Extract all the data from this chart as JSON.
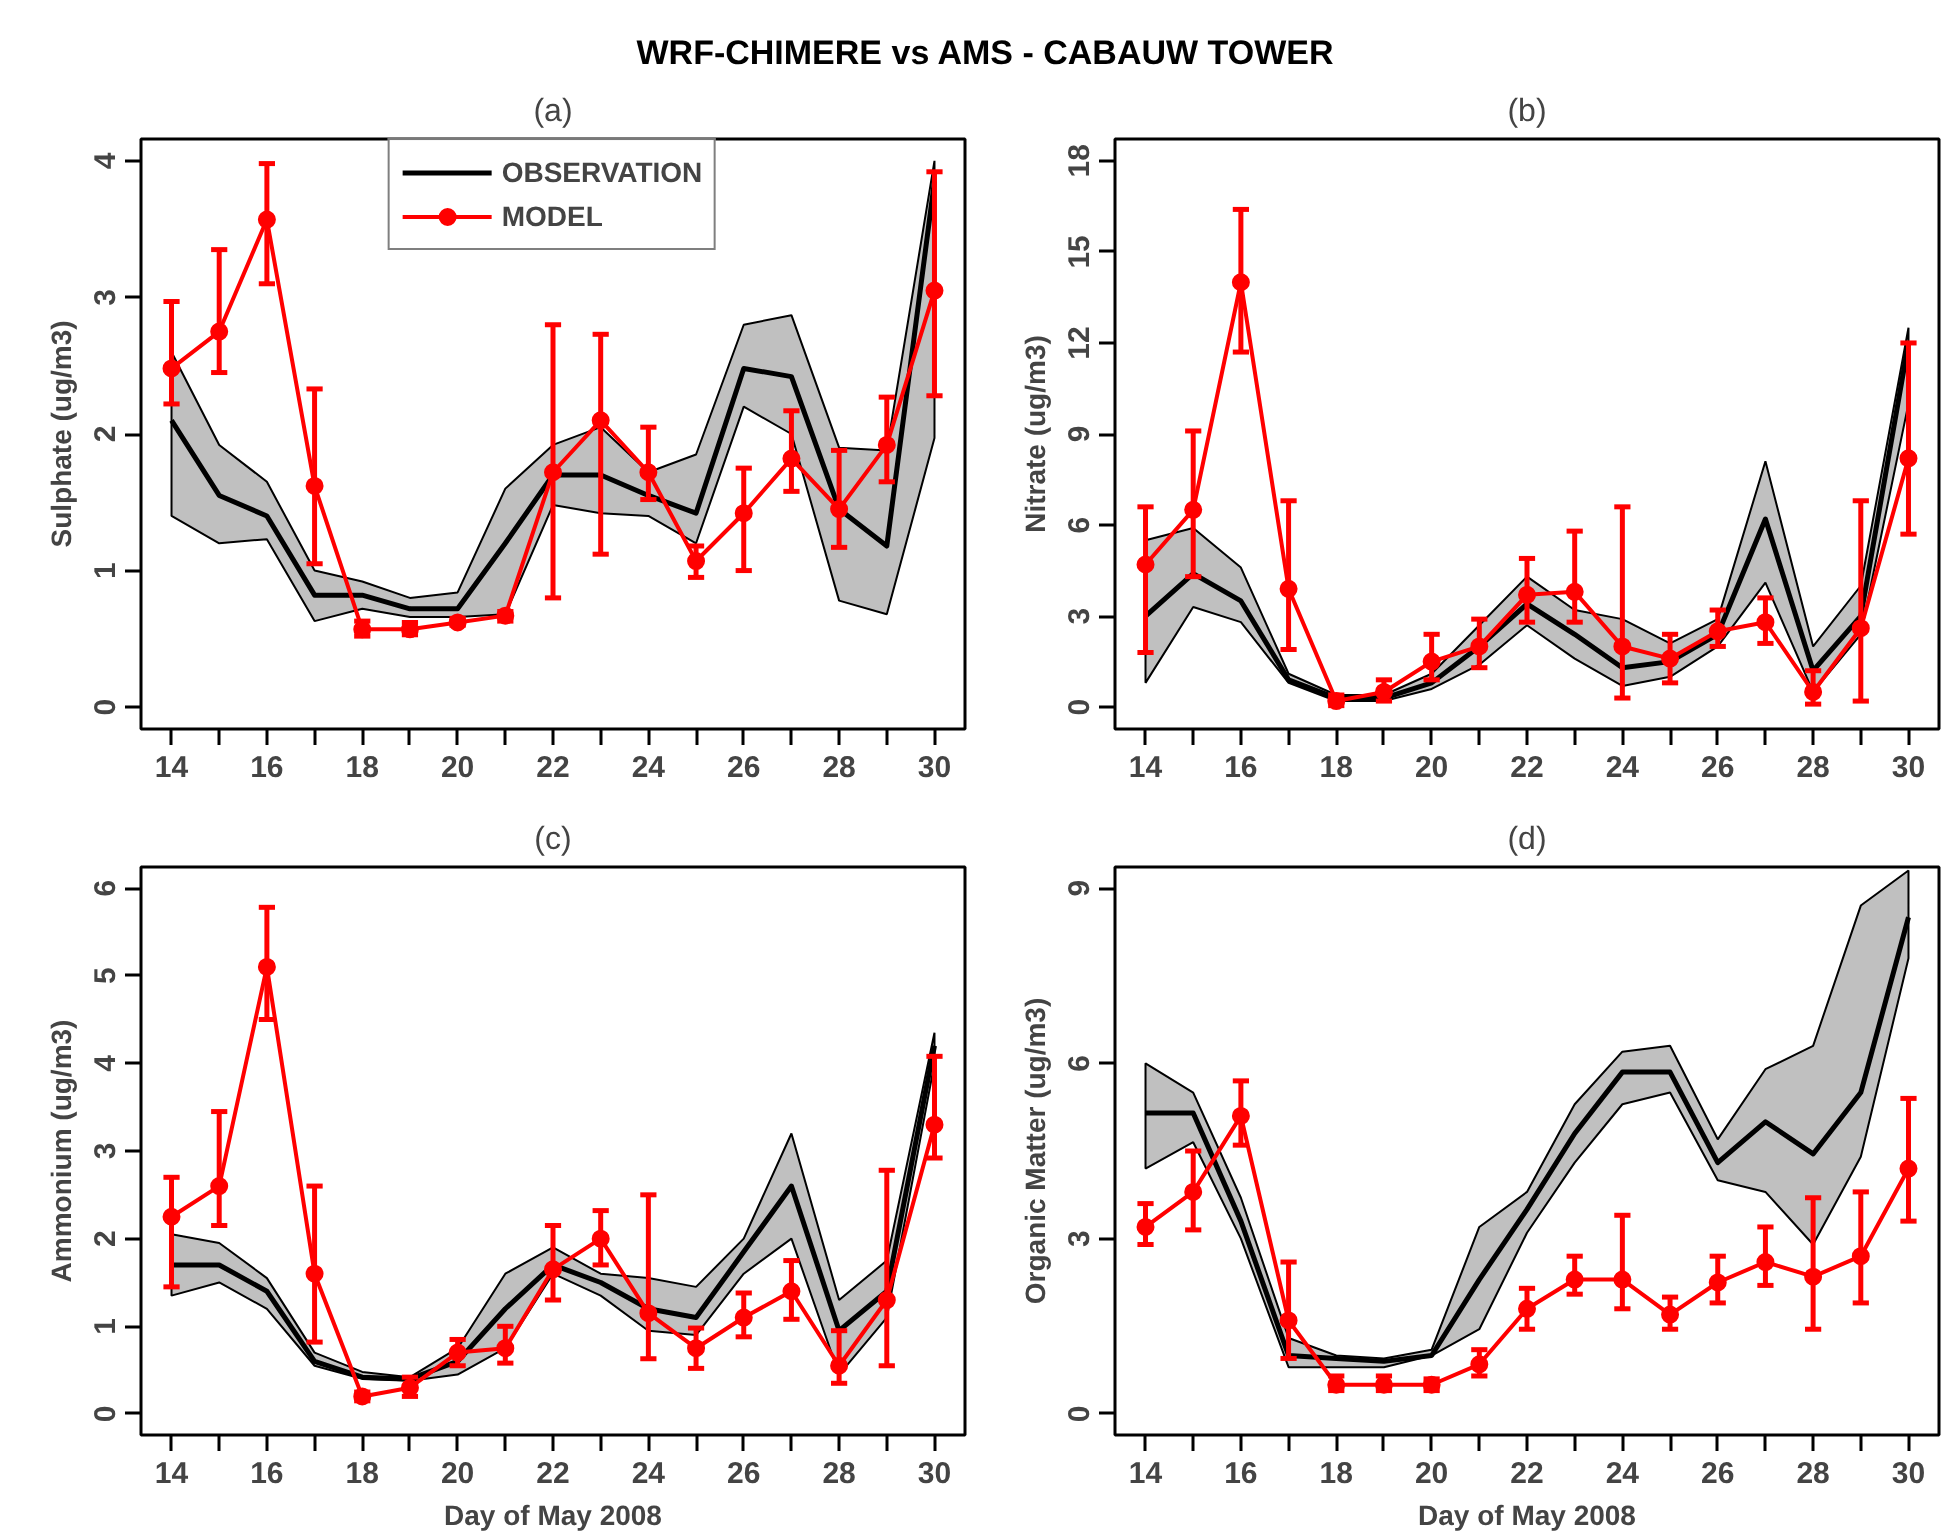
{
  "chart_data": [
    {
      "type": "line",
      "title": "(a)",
      "ylabel": "Sulphate (ug/m3)",
      "annotations": [
        "WRF-CHIMERE vs AMS - CABAUW TOWER"
      ],
      "legend": "top",
      "marker": "circle",
      "x": [
        14,
        15,
        16,
        17,
        18,
        19,
        20,
        21,
        22,
        23,
        24,
        25,
        26,
        27,
        28,
        29,
        30
      ],
      "xlim": [
        13.36,
        30.64
      ],
      "xticks": [
        14,
        {
          "value": 15,
          "label": null
        },
        16,
        {
          "value": 17,
          "label": null
        },
        18,
        {
          "value": 19,
          "label": null
        },
        20,
        {
          "value": 21,
          "label": null
        },
        22,
        {
          "value": 23,
          "label": null
        },
        24,
        {
          "value": 25,
          "label": null
        },
        26,
        {
          "value": 27,
          "label": null
        },
        28,
        {
          "value": 29,
          "label": null
        },
        30
      ],
      "ylim": [
        -0.16,
        4.16
      ],
      "yticks": [
        0,
        1,
        2,
        3,
        4
      ],
      "series": [
        {
          "name": "OBSERVATION",
          "color": "#000000",
          "marker": "none",
          "values": [
            2.1,
            1.55,
            1.4,
            0.82,
            0.82,
            0.72,
            0.72,
            1.2,
            1.7,
            1.7,
            1.55,
            1.42,
            2.48,
            2.42,
            1.45,
            1.18,
            3.85
          ],
          "lower": [
            1.4,
            1.2,
            1.23,
            0.63,
            0.72,
            0.66,
            0.66,
            0.68,
            1.48,
            1.42,
            1.4,
            1.2,
            2.2,
            2.0,
            0.78,
            0.68,
            1.97
          ],
          "upper": [
            2.6,
            1.92,
            1.65,
            1.0,
            0.92,
            0.8,
            0.84,
            1.6,
            1.92,
            2.05,
            1.72,
            1.85,
            2.8,
            2.87,
            1.9,
            1.88,
            4.0
          ]
        },
        {
          "name": "MODEL",
          "color": "#ff0000",
          "values": [
            2.48,
            2.75,
            3.57,
            1.62,
            0.57,
            0.57,
            0.62,
            0.67,
            1.72,
            2.1,
            1.72,
            1.07,
            1.42,
            1.82,
            1.45,
            1.92,
            3.05
          ],
          "errors": [
            [
              2.22,
              2.97
            ],
            [
              2.45,
              3.35
            ],
            [
              3.1,
              3.98
            ],
            [
              1.05,
              2.33
            ],
            [
              0.52,
              0.63
            ],
            [
              0.53,
              0.62
            ],
            [
              0.6,
              0.65
            ],
            [
              0.63,
              0.7
            ],
            [
              0.8,
              2.8
            ],
            [
              1.12,
              2.73
            ],
            [
              1.52,
              2.05
            ],
            [
              0.95,
              1.18
            ],
            [
              1.0,
              1.75
            ],
            [
              1.58,
              2.17
            ],
            [
              1.17,
              1.88
            ],
            [
              1.65,
              2.27
            ],
            [
              2.28,
              3.92
            ]
          ]
        }
      ]
    },
    {
      "type": "line",
      "title": "(b)",
      "ylabel": "Nitrate (ug/m3)",
      "marker": "circle",
      "x": [
        14,
        15,
        16,
        17,
        18,
        19,
        20,
        21,
        22,
        23,
        24,
        25,
        26,
        27,
        28,
        29,
        30
      ],
      "xlim": [
        13.36,
        30.64
      ],
      "xticks": [
        14,
        {
          "value": 15,
          "label": null
        },
        16,
        {
          "value": 17,
          "label": null
        },
        18,
        {
          "value": 19,
          "label": null
        },
        20,
        {
          "value": 21,
          "label": null
        },
        22,
        {
          "value": 23,
          "label": null
        },
        24,
        {
          "value": 25,
          "label": null
        },
        26,
        {
          "value": 27,
          "label": null
        },
        28,
        {
          "value": 29,
          "label": null
        },
        30
      ],
      "ylim": [
        -0.72,
        18.72
      ],
      "yticks": [
        0,
        3,
        6,
        9,
        12,
        15,
        18
      ],
      "series": [
        {
          "color": "#000000",
          "marker": "none",
          "values": [
            3.0,
            4.4,
            3.5,
            0.9,
            0.3,
            0.3,
            0.8,
            2.0,
            3.4,
            2.4,
            1.3,
            1.5,
            2.4,
            6.2,
            1.2,
            3.0,
            12.0
          ],
          "lower": [
            0.8,
            3.3,
            2.8,
            0.8,
            0.2,
            0.2,
            0.6,
            1.4,
            2.7,
            1.6,
            0.7,
            1.0,
            2.0,
            4.1,
            0.5,
            2.4,
            10.0
          ],
          "upper": [
            5.5,
            5.9,
            4.6,
            1.1,
            0.4,
            0.4,
            1.1,
            2.7,
            4.3,
            3.2,
            2.9,
            2.1,
            2.9,
            8.1,
            2.0,
            4.0,
            12.5
          ]
        },
        {
          "color": "#ff0000",
          "values": [
            4.7,
            6.5,
            14.0,
            3.9,
            0.2,
            0.5,
            1.5,
            2.0,
            3.7,
            3.8,
            2.0,
            1.6,
            2.5,
            2.8,
            0.5,
            2.6,
            8.2
          ],
          "errors": [
            [
              1.8,
              6.6
            ],
            [
              4.3,
              9.1
            ],
            [
              11.7,
              16.4
            ],
            [
              1.9,
              6.8
            ],
            [
              0.05,
              0.4
            ],
            [
              0.2,
              0.9
            ],
            [
              0.9,
              2.4
            ],
            [
              1.3,
              2.9
            ],
            [
              2.8,
              4.9
            ],
            [
              2.8,
              5.8
            ],
            [
              0.3,
              6.6
            ],
            [
              0.8,
              2.4
            ],
            [
              2.0,
              3.2
            ],
            [
              2.1,
              3.6
            ],
            [
              0.1,
              1.2
            ],
            [
              0.2,
              6.8
            ],
            [
              5.7,
              12.0
            ]
          ]
        }
      ]
    },
    {
      "type": "line",
      "title": "(c)",
      "xlabel": "Day of May 2008",
      "ylabel": "Ammonium (ug/m3)",
      "marker": "circle",
      "x": [
        14,
        15,
        16,
        17,
        18,
        19,
        20,
        21,
        22,
        23,
        24,
        25,
        26,
        27,
        28,
        29,
        30
      ],
      "xlim": [
        13.36,
        30.64
      ],
      "xticks": [
        14,
        {
          "value": 15,
          "label": null
        },
        16,
        {
          "value": 17,
          "label": null
        },
        18,
        {
          "value": 19,
          "label": null
        },
        20,
        {
          "value": 21,
          "label": null
        },
        22,
        {
          "value": 23,
          "label": null
        },
        24,
        {
          "value": 25,
          "label": null
        },
        26,
        {
          "value": 27,
          "label": null
        },
        28,
        {
          "value": 29,
          "label": null
        },
        30
      ],
      "ylim": [
        -0.24,
        6.24
      ],
      "yticks": [
        0,
        1,
        2,
        3,
        4,
        5,
        6
      ],
      "series": [
        {
          "color": "#000000",
          "marker": "none",
          "values": [
            1.7,
            1.7,
            1.4,
            0.6,
            0.42,
            0.4,
            0.6,
            1.2,
            1.7,
            1.5,
            1.2,
            1.1,
            1.85,
            2.6,
            0.95,
            1.4,
            4.2
          ],
          "lower": [
            1.35,
            1.5,
            1.2,
            0.55,
            0.4,
            0.38,
            0.45,
            0.75,
            1.6,
            1.35,
            0.95,
            0.9,
            1.6,
            2.0,
            0.45,
            1.1,
            4.0
          ],
          "upper": [
            2.05,
            1.95,
            1.55,
            0.7,
            0.48,
            0.42,
            0.75,
            1.6,
            1.9,
            1.6,
            1.55,
            1.45,
            2.0,
            3.2,
            1.3,
            1.75,
            4.35
          ]
        },
        {
          "color": "#ff0000",
          "values": [
            2.25,
            2.6,
            5.1,
            1.6,
            0.2,
            0.3,
            0.7,
            0.75,
            1.65,
            2.0,
            1.15,
            0.75,
            1.1,
            1.4,
            0.55,
            1.3,
            3.3
          ],
          "errors": [
            [
              1.45,
              2.7
            ],
            [
              2.15,
              3.45
            ],
            [
              4.5,
              5.78
            ],
            [
              0.82,
              2.6
            ],
            [
              0.15,
              0.25
            ],
            [
              0.2,
              0.42
            ],
            [
              0.55,
              0.85
            ],
            [
              0.58,
              1.0
            ],
            [
              1.3,
              2.15
            ],
            [
              1.7,
              2.32
            ],
            [
              0.63,
              2.5
            ],
            [
              0.52,
              0.98
            ],
            [
              0.88,
              1.38
            ],
            [
              1.08,
              1.75
            ],
            [
              0.35,
              0.95
            ],
            [
              0.55,
              2.78
            ],
            [
              2.92,
              4.08
            ]
          ]
        }
      ]
    },
    {
      "type": "line",
      "title": "(d)",
      "xlabel": "Day of May 2008",
      "ylabel": "Organic Matter (ug/m3)",
      "marker": "circle",
      "x": [
        14,
        15,
        16,
        17,
        18,
        19,
        20,
        21,
        22,
        23,
        24,
        25,
        26,
        27,
        28,
        29,
        30
      ],
      "xlim": [
        13.36,
        30.64
      ],
      "xticks": [
        14,
        {
          "value": 15,
          "label": null
        },
        16,
        {
          "value": 17,
          "label": null
        },
        18,
        {
          "value": 19,
          "label": null
        },
        20,
        {
          "value": 21,
          "label": null
        },
        22,
        {
          "value": 23,
          "label": null
        },
        24,
        {
          "value": 25,
          "label": null
        },
        26,
        {
          "value": 27,
          "label": null
        },
        28,
        {
          "value": 29,
          "label": null
        },
        30
      ],
      "ylim": [
        -0.36,
        9.36
      ],
      "yticks": [
        0,
        3,
        6,
        9
      ],
      "series": [
        {
          "color": "#000000",
          "marker": "none",
          "values": [
            5.15,
            5.15,
            3.3,
            1.0,
            0.95,
            0.9,
            1.0,
            2.3,
            3.5,
            4.8,
            5.85,
            5.85,
            4.3,
            5.0,
            4.45,
            5.5,
            8.5
          ],
          "lower": [
            4.2,
            4.65,
            3.0,
            0.8,
            0.8,
            0.8,
            1.0,
            1.45,
            3.1,
            4.3,
            5.3,
            5.5,
            4.0,
            3.8,
            2.9,
            4.4,
            7.8
          ],
          "upper": [
            6.0,
            5.5,
            3.7,
            1.3,
            1.0,
            0.95,
            1.1,
            3.2,
            3.8,
            5.3,
            6.2,
            6.3,
            4.7,
            5.9,
            6.3,
            8.7,
            9.3
          ]
        },
        {
          "color": "#ff0000",
          "values": [
            3.2,
            3.8,
            5.1,
            1.6,
            0.5,
            0.5,
            0.5,
            0.85,
            1.8,
            2.3,
            2.3,
            1.7,
            2.25,
            2.6,
            2.35,
            2.7,
            4.2
          ],
          "errors": [
            [
              2.9,
              3.6
            ],
            [
              3.15,
              4.5
            ],
            [
              4.6,
              5.7
            ],
            [
              0.95,
              2.6
            ],
            [
              0.4,
              0.65
            ],
            [
              0.4,
              0.65
            ],
            [
              0.4,
              0.6
            ],
            [
              0.65,
              1.1
            ],
            [
              1.45,
              2.15
            ],
            [
              2.05,
              2.7
            ],
            [
              1.8,
              3.4
            ],
            [
              1.45,
              2.0
            ],
            [
              1.9,
              2.7
            ],
            [
              2.2,
              3.2
            ],
            [
              1.45,
              3.7
            ],
            [
              1.9,
              3.8
            ],
            [
              3.3,
              5.4
            ]
          ]
        }
      ]
    }
  ]
}
